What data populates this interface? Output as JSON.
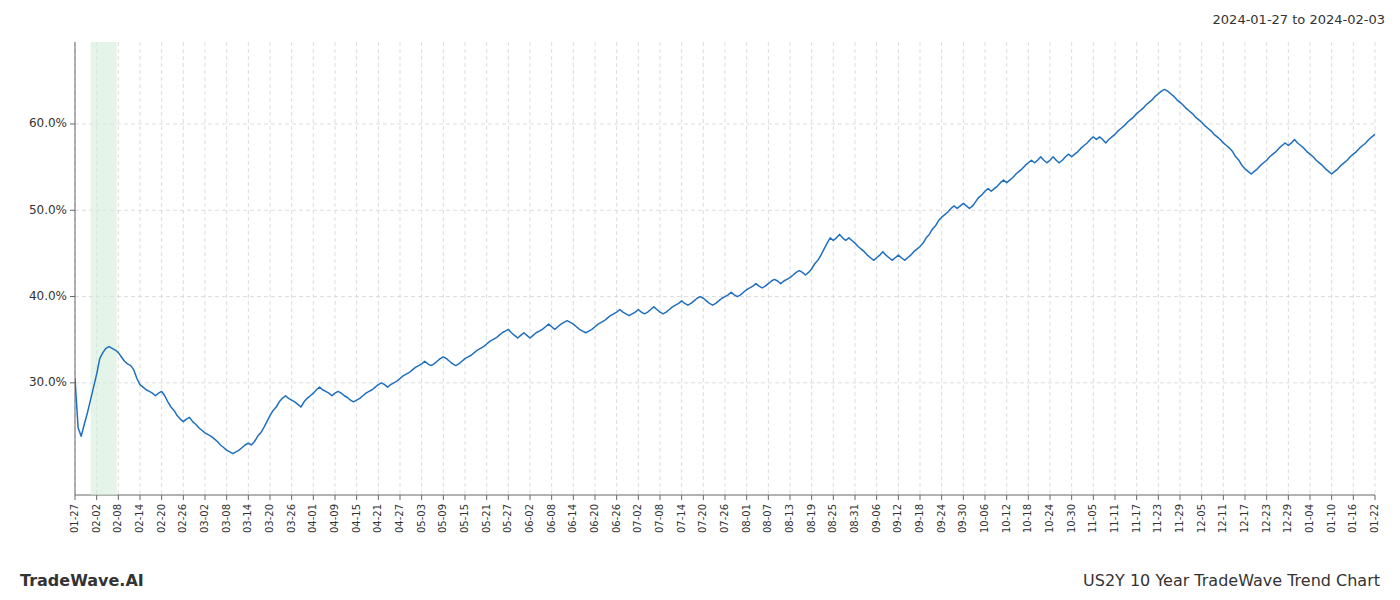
{
  "chart_data": {
    "type": "line",
    "title": "US2Y 10 Year TradeWave Trend Chart",
    "subtitle": "2024-01-27 to 2024-02-03",
    "annotations": [
      "TradeWave.AI"
    ],
    "color": "#1f6fbf",
    "grid": true,
    "ylim": [
      0.17,
      0.695
    ],
    "yticks": [
      {
        "value": 0.3,
        "label": "30.0%"
      },
      {
        "value": 0.4,
        "label": "40.0%"
      },
      {
        "value": 0.5,
        "label": "50.0%"
      },
      {
        "value": 0.6,
        "label": "60.0%"
      }
    ],
    "highlight": {
      "x": [
        5.052,
        13.472
      ],
      "color": "#d4edda"
    },
    "categories": [
      "01-27",
      null,
      null,
      null,
      null,
      null,
      null,
      "02-02",
      null,
      null,
      null,
      null,
      null,
      null,
      "02-08",
      null,
      null,
      null,
      null,
      null,
      null,
      "02-14",
      null,
      null,
      null,
      null,
      null,
      null,
      "02-20",
      null,
      null,
      null,
      null,
      null,
      null,
      "02-26",
      null,
      null,
      null,
      null,
      null,
      null,
      "03-02",
      null,
      null,
      null,
      null,
      null,
      null,
      "03-08",
      null,
      null,
      null,
      null,
      null,
      null,
      "03-14",
      null,
      null,
      null,
      null,
      null,
      null,
      "03-20",
      null,
      null,
      null,
      null,
      null,
      null,
      "03-26",
      null,
      null,
      null,
      null,
      null,
      null,
      "04-01",
      null,
      null,
      null,
      null,
      null,
      null,
      "04-09",
      null,
      null,
      null,
      null,
      null,
      null,
      "04-15",
      null,
      null,
      null,
      null,
      null,
      null,
      "04-21",
      null,
      null,
      null,
      null,
      null,
      null,
      "04-27",
      null,
      null,
      null,
      null,
      null,
      null,
      "05-03",
      null,
      null,
      null,
      null,
      null,
      null,
      "05-09",
      null,
      null,
      null,
      null,
      null,
      null,
      "05-15",
      null,
      null,
      null,
      null,
      null,
      null,
      "05-21",
      null,
      null,
      null,
      null,
      null,
      null,
      "05-27",
      null,
      null,
      null,
      null,
      null,
      null,
      "06-02",
      null,
      null,
      null,
      null,
      null,
      null,
      "06-08",
      null,
      null,
      null,
      null,
      null,
      null,
      "06-14",
      null,
      null,
      null,
      null,
      null,
      null,
      "06-20",
      null,
      null,
      null,
      null,
      null,
      null,
      "06-26",
      null,
      null,
      null,
      null,
      null,
      null,
      "07-02",
      null,
      null,
      null,
      null,
      null,
      null,
      "07-08",
      null,
      null,
      null,
      null,
      null,
      null,
      "07-14",
      null,
      null,
      null,
      null,
      null,
      null,
      "07-20",
      null,
      null,
      null,
      null,
      null,
      null,
      "07-26",
      null,
      null,
      null,
      null,
      null,
      null,
      "08-01",
      null,
      null,
      null,
      null,
      null,
      null,
      "08-07",
      null,
      null,
      null,
      null,
      null,
      null,
      "08-13",
      null,
      null,
      null,
      null,
      null,
      null,
      "08-19",
      null,
      null,
      null,
      null,
      null,
      null,
      "08-25",
      null,
      null,
      null,
      null,
      null,
      null,
      "08-31",
      null,
      null,
      null,
      null,
      null,
      null,
      "09-06",
      null,
      null,
      null,
      null,
      null,
      null,
      "09-12",
      null,
      null,
      null,
      null,
      null,
      null,
      "09-18",
      null,
      null,
      null,
      null,
      null,
      null,
      "09-24",
      null,
      null,
      null,
      null,
      null,
      null,
      "09-30",
      null,
      null,
      null,
      null,
      null,
      null,
      "10-06",
      null,
      null,
      null,
      null,
      null,
      null,
      "10-12",
      null,
      null,
      null,
      null,
      null,
      null,
      "10-18",
      null,
      null,
      null,
      null,
      null,
      null,
      "10-24",
      null,
      null,
      null,
      null,
      null,
      null,
      "10-30",
      null,
      null,
      null,
      null,
      null,
      null,
      "11-05",
      null,
      null,
      null,
      null,
      null,
      null,
      "11-11",
      null,
      null,
      null,
      null,
      null,
      null,
      "11-17",
      null,
      null,
      null,
      null,
      null,
      null,
      "11-23",
      null,
      null,
      null,
      null,
      null,
      null,
      "11-29",
      null,
      null,
      null,
      null,
      null,
      null,
      "12-05",
      null,
      null,
      null,
      null,
      null,
      null,
      "12-11",
      null,
      null,
      null,
      null,
      null,
      null,
      "12-17",
      null,
      null,
      null,
      null,
      null,
      null,
      "12-23",
      null,
      null,
      null,
      null,
      null,
      null,
      "12-29",
      null,
      null,
      null,
      null,
      null,
      null,
      "01-04",
      null,
      null,
      null,
      null,
      null,
      null,
      "01-10",
      null,
      null,
      null,
      null,
      null,
      null,
      "01-16",
      null,
      null,
      null,
      null,
      null,
      null,
      "01-22"
    ],
    "values": [
      0.305,
      0.248,
      0.238,
      0.252,
      0.265,
      0.28,
      0.295,
      0.31,
      0.328,
      0.335,
      0.34,
      0.342,
      0.34,
      0.338,
      0.335,
      0.33,
      0.325,
      0.322,
      0.32,
      0.315,
      0.305,
      0.298,
      0.295,
      0.292,
      0.29,
      0.288,
      0.285,
      0.288,
      0.29,
      0.285,
      0.278,
      0.272,
      0.268,
      0.262,
      0.258,
      0.255,
      0.258,
      0.26,
      0.255,
      0.252,
      0.248,
      0.245,
      0.242,
      0.24,
      0.238,
      0.235,
      0.232,
      0.228,
      0.225,
      0.222,
      0.22,
      0.218,
      0.22,
      0.222,
      0.225,
      0.228,
      0.23,
      0.228,
      0.232,
      0.238,
      0.242,
      0.248,
      0.255,
      0.262,
      0.268,
      0.272,
      0.278,
      0.282,
      0.285,
      0.282,
      0.28,
      0.278,
      0.275,
      0.272,
      0.278,
      0.282,
      0.285,
      0.288,
      0.292,
      0.295,
      0.292,
      0.29,
      0.288,
      0.285,
      0.288,
      0.29,
      0.288,
      0.285,
      0.283,
      0.28,
      0.278,
      0.28,
      0.282,
      0.285,
      0.288,
      0.29,
      0.292,
      0.295,
      0.298,
      0.3,
      0.298,
      0.295,
      0.298,
      0.3,
      0.302,
      0.305,
      0.308,
      0.31,
      0.312,
      0.315,
      0.318,
      0.32,
      0.322,
      0.325,
      0.322,
      0.32,
      0.322,
      0.325,
      0.328,
      0.33,
      0.328,
      0.325,
      0.322,
      0.32,
      0.322,
      0.325,
      0.328,
      0.33,
      0.332,
      0.335,
      0.338,
      0.34,
      0.342,
      0.345,
      0.348,
      0.35,
      0.352,
      0.355,
      0.358,
      0.36,
      0.362,
      0.358,
      0.355,
      0.352,
      0.355,
      0.358,
      0.355,
      0.352,
      0.355,
      0.358,
      0.36,
      0.362,
      0.365,
      0.368,
      0.365,
      0.362,
      0.365,
      0.368,
      0.37,
      0.372,
      0.37,
      0.368,
      0.365,
      0.362,
      0.36,
      0.358,
      0.36,
      0.362,
      0.365,
      0.368,
      0.37,
      0.372,
      0.375,
      0.378,
      0.38,
      0.382,
      0.385,
      0.382,
      0.38,
      0.378,
      0.38,
      0.382,
      0.385,
      0.382,
      0.38,
      0.382,
      0.385,
      0.388,
      0.385,
      0.382,
      0.38,
      0.382,
      0.385,
      0.388,
      0.39,
      0.392,
      0.395,
      0.392,
      0.39,
      0.392,
      0.395,
      0.398,
      0.4,
      0.398,
      0.395,
      0.392,
      0.39,
      0.392,
      0.395,
      0.398,
      0.4,
      0.402,
      0.405,
      0.402,
      0.4,
      0.402,
      0.405,
      0.408,
      0.41,
      0.412,
      0.415,
      0.412,
      0.41,
      0.412,
      0.415,
      0.418,
      0.42,
      0.418,
      0.415,
      0.418,
      0.42,
      0.422,
      0.425,
      0.428,
      0.43,
      0.428,
      0.425,
      0.428,
      0.432,
      0.438,
      0.442,
      0.448,
      0.455,
      0.462,
      0.468,
      0.465,
      0.468,
      0.472,
      0.468,
      0.465,
      0.468,
      0.465,
      0.462,
      0.458,
      0.455,
      0.452,
      0.448,
      0.445,
      0.442,
      0.445,
      0.448,
      0.452,
      0.448,
      0.445,
      0.442,
      0.445,
      0.448,
      0.445,
      0.442,
      0.445,
      0.448,
      0.452,
      0.455,
      0.458,
      0.462,
      0.468,
      0.472,
      0.478,
      0.482,
      0.488,
      0.492,
      0.495,
      0.498,
      0.502,
      0.505,
      0.502,
      0.505,
      0.508,
      0.505,
      0.502,
      0.505,
      0.51,
      0.515,
      0.518,
      0.522,
      0.525,
      0.522,
      0.525,
      0.528,
      0.532,
      0.535,
      0.532,
      0.535,
      0.538,
      0.542,
      0.545,
      0.548,
      0.552,
      0.555,
      0.558,
      0.555,
      0.558,
      0.562,
      0.558,
      0.555,
      0.558,
      0.562,
      0.558,
      0.555,
      0.558,
      0.562,
      0.565,
      0.562,
      0.565,
      0.568,
      0.572,
      0.575,
      0.578,
      0.582,
      0.585,
      0.582,
      0.585,
      0.582,
      0.578,
      0.582,
      0.585,
      0.588,
      0.592,
      0.595,
      0.598,
      0.602,
      0.605,
      0.608,
      0.612,
      0.615,
      0.618,
      0.622,
      0.625,
      0.628,
      0.632,
      0.635,
      0.638,
      0.64,
      0.638,
      0.635,
      0.632,
      0.628,
      0.625,
      0.622,
      0.618,
      0.615,
      0.612,
      0.608,
      0.605,
      0.602,
      0.598,
      0.595,
      0.592,
      0.588,
      0.585,
      0.582,
      0.578,
      0.575,
      0.572,
      0.568,
      0.562,
      0.558,
      0.552,
      0.548,
      0.545,
      0.542,
      0.545,
      0.548,
      0.552,
      0.555,
      0.558,
      0.562,
      0.565,
      0.568,
      0.572,
      0.575,
      0.578,
      0.575,
      0.578,
      0.582,
      0.578,
      0.575,
      0.572,
      0.568,
      0.565,
      0.562,
      0.558,
      0.555,
      0.552,
      0.548,
      0.545,
      0.542,
      0.545,
      0.548,
      0.552,
      0.555,
      0.558,
      0.562,
      0.565,
      0.568,
      0.572,
      0.575,
      0.578,
      0.582,
      0.585,
      0.588
    ]
  }
}
